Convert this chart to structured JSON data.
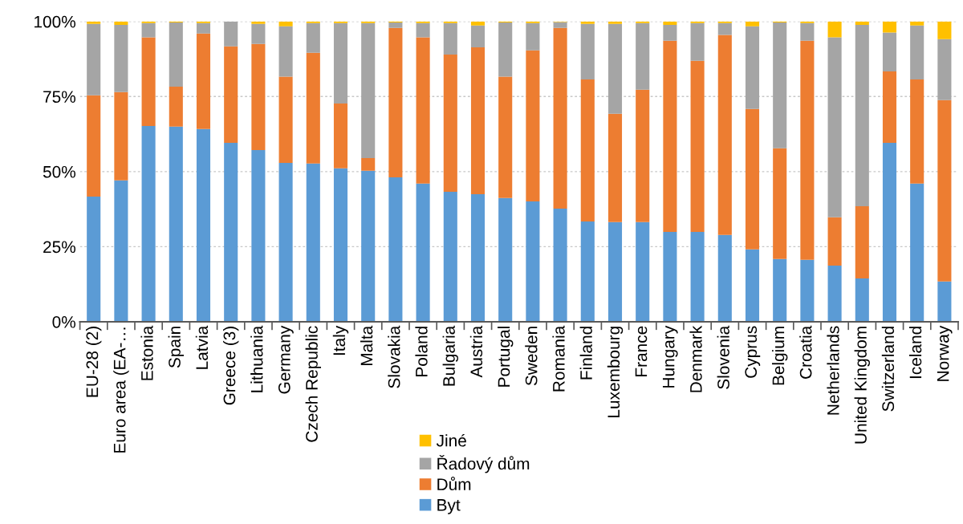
{
  "chart_data": {
    "type": "bar",
    "stacked": true,
    "categories": [
      "EU-28 (2)",
      "Euro area (EA-…",
      "Estonia",
      "Spain",
      "Latvia",
      "Greece (3)",
      "Lithuania",
      "Germany",
      "Czech Republic",
      "Italy",
      "Malta",
      "Slovakia",
      "Poland",
      "Bulgaria",
      "Austria",
      "Portugal",
      "Sweden",
      "Romania",
      "Finland",
      "Luxembourg",
      "France",
      "Hungary",
      "Denmark",
      "Slovenia",
      "Cyprus",
      "Belgium",
      "Croatia",
      "Netherlands",
      "United Kingdom",
      "Switzerland",
      "Iceland",
      "Norway"
    ],
    "series": [
      {
        "name": "Byt",
        "color": "#5b9bd5",
        "values": [
          41.7,
          47.1,
          65.2,
          65.0,
          64.2,
          59.6,
          57.2,
          52.9,
          52.7,
          51.1,
          50.3,
          48.1,
          46.0,
          43.3,
          42.5,
          41.2,
          40.1,
          37.7,
          33.4,
          33.2,
          33.2,
          29.9,
          29.9,
          28.9,
          24.1,
          20.9,
          20.6,
          18.7,
          14.4,
          59.6,
          46.0,
          13.4
        ]
      },
      {
        "name": "Dům",
        "color": "#ed7d31",
        "values": [
          33.7,
          29.4,
          29.5,
          13.3,
          31.8,
          32.1,
          35.3,
          28.7,
          36.9,
          21.6,
          4.2,
          49.8,
          48.7,
          45.7,
          48.9,
          40.4,
          50.3,
          60.2,
          47.3,
          36.1,
          44.1,
          63.7,
          57.0,
          66.6,
          46.8,
          36.9,
          73.0,
          16.1,
          24.1,
          23.8,
          34.7,
          60.4
        ]
      },
      {
        "name": "Řadový dům",
        "color": "#a5a5a5",
        "values": [
          23.8,
          22.4,
          4.8,
          21.4,
          3.5,
          8.3,
          6.7,
          16.8,
          9.9,
          26.8,
          45.0,
          1.8,
          4.8,
          10.5,
          7.3,
          18.1,
          9.1,
          1.9,
          18.5,
          29.9,
          22.2,
          5.3,
          12.6,
          4.0,
          27.5,
          41.9,
          5.9,
          59.9,
          60.4,
          12.9,
          18.0,
          20.3
        ]
      },
      {
        "name": "Jiné",
        "color": "#ffc000",
        "values": [
          0.8,
          1.1,
          0.5,
          0.3,
          0.5,
          0.0,
          0.8,
          1.6,
          0.5,
          0.5,
          0.5,
          0.3,
          0.5,
          0.5,
          1.3,
          0.3,
          0.5,
          0.2,
          0.8,
          0.8,
          0.5,
          1.1,
          0.5,
          0.5,
          1.6,
          0.3,
          0.5,
          5.3,
          1.1,
          3.7,
          1.3,
          5.9
        ]
      }
    ],
    "ylim": [
      0,
      100
    ],
    "yticks": [
      {
        "value": 0,
        "label": "0%"
      },
      {
        "value": 25,
        "label": "25%"
      },
      {
        "value": 50,
        "label": "50%"
      },
      {
        "value": 75,
        "label": "75%"
      },
      {
        "value": 100,
        "label": "100%"
      }
    ],
    "grid": "y",
    "legend": "bottom"
  }
}
